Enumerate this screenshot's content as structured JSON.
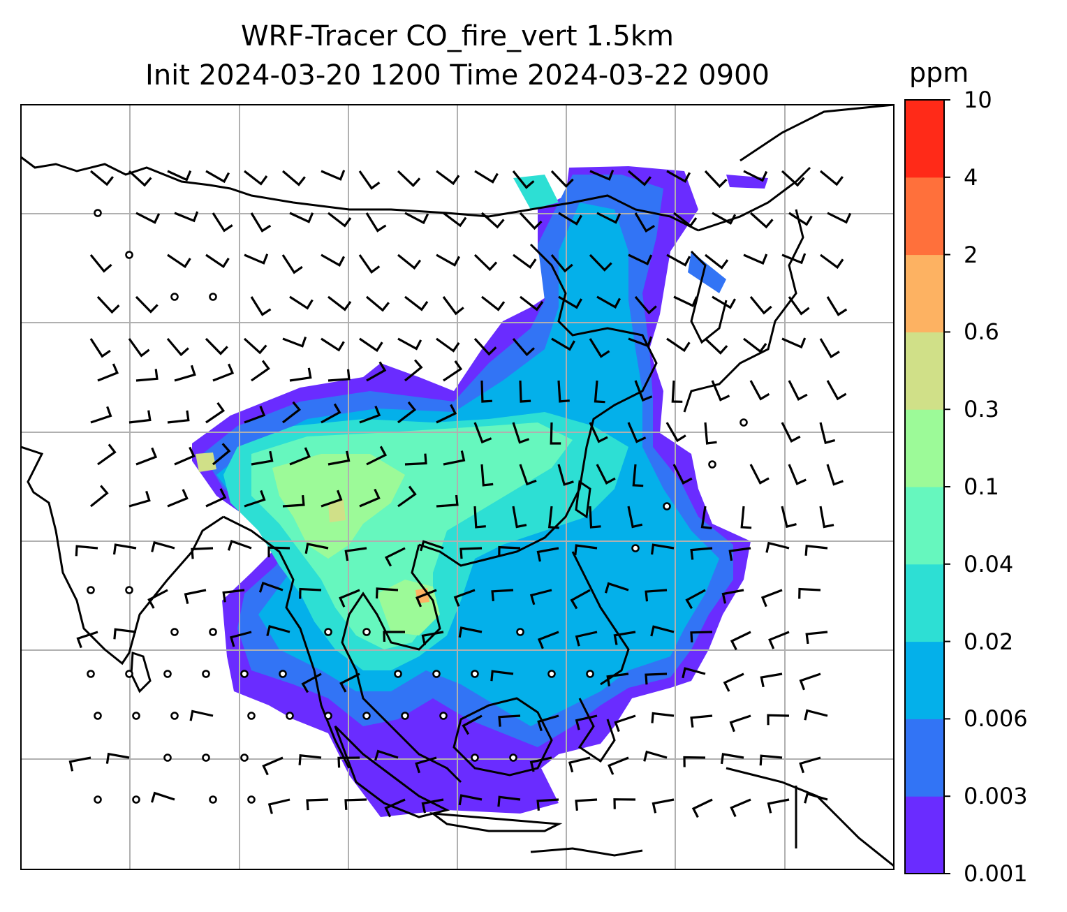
{
  "title": {
    "line1": "WRF-Tracer CO_fire_vert 1.5km",
    "line2": "Init 2024-03-20 1200 Time 2024-03-22 0900"
  },
  "colorbar": {
    "units": "ppm",
    "ticks": [
      "0.001",
      "0.003",
      "0.006",
      "0.02",
      "0.04",
      "0.1",
      "0.3",
      "0.6",
      "2",
      "4",
      "10"
    ],
    "colors": [
      "#6a2cff",
      "#3274f5",
      "#04b0ea",
      "#2ddfd4",
      "#66f7be",
      "#9cfa98",
      "#d0e088",
      "#fdb262",
      "#ff703b",
      "#ff2a18"
    ]
  },
  "map": {
    "gridlines": true,
    "features": [
      "coastlines",
      "country-borders",
      "wind-barbs",
      "calm-wind-circles"
    ]
  }
}
